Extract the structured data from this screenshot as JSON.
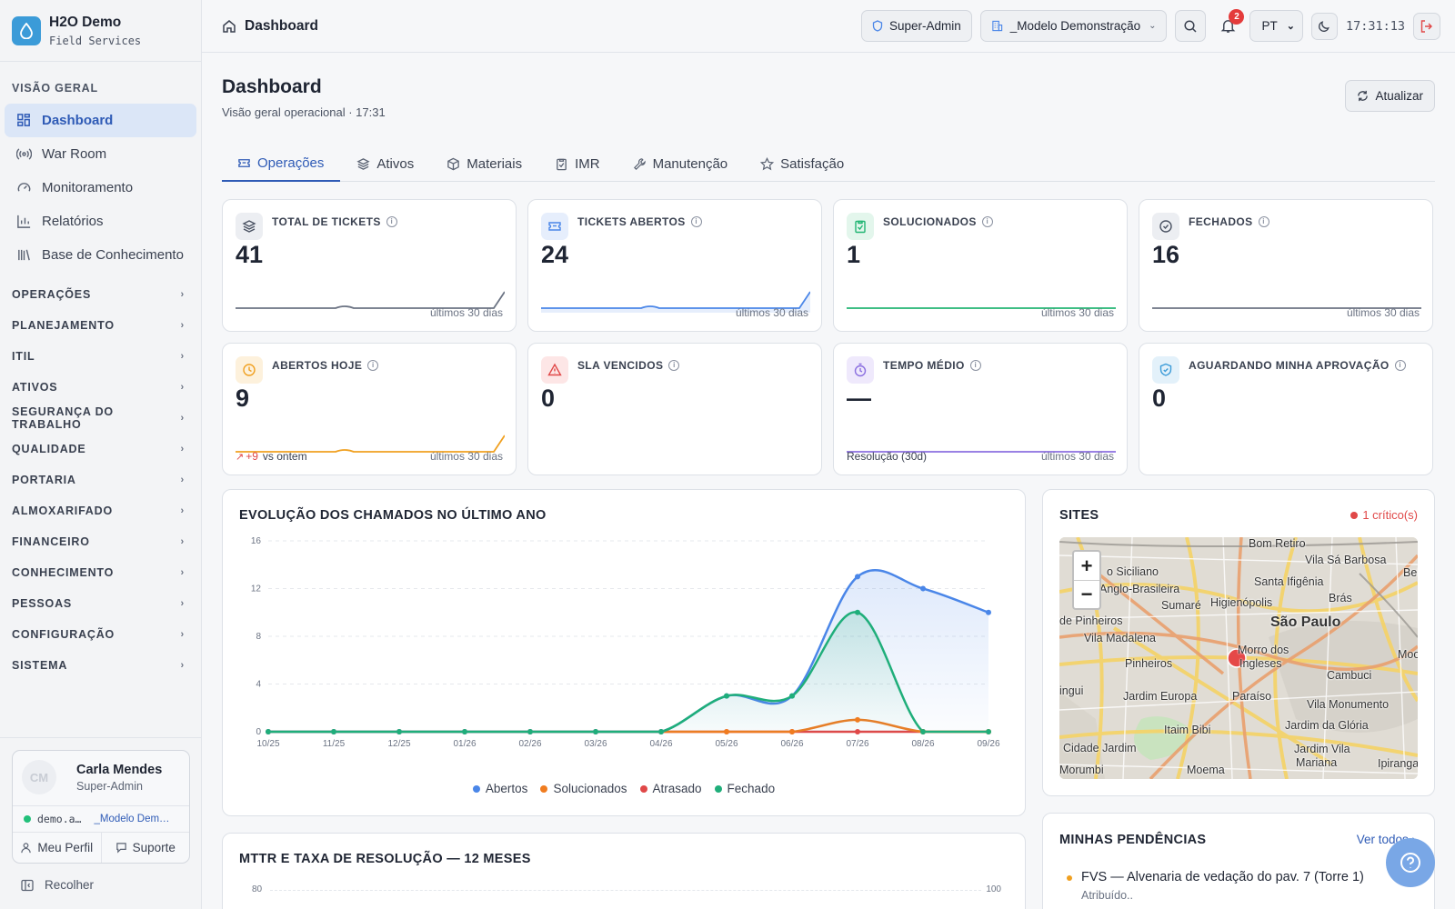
{
  "brand": {
    "name": "H2O Demo",
    "subtitle": "Field Services"
  },
  "sidebar": {
    "section": "VISÃO GERAL",
    "items": [
      {
        "label": "Dashboard",
        "icon": "grid-icon",
        "active": true
      },
      {
        "label": "War Room",
        "icon": "broadcast-icon"
      },
      {
        "label": "Monitoramento",
        "icon": "gauge-icon"
      },
      {
        "label": "Relatórios",
        "icon": "bar-chart-icon"
      },
      {
        "label": "Base de Conhecimento",
        "icon": "library-icon"
      }
    ],
    "groups": [
      "OPERAÇÕES",
      "PLANEJAMENTO",
      "ITIL",
      "ATIVOS",
      "SEGURANÇA DO TRABALHO",
      "QUALIDADE",
      "PORTARIA",
      "ALMOXARIFADO",
      "FINANCEIRO",
      "CONHECIMENTO",
      "PESSOAS",
      "CONFIGURAÇÃO",
      "SISTEMA"
    ],
    "user": {
      "initials": "CM",
      "name": "Carla Mendes",
      "role": "Super-Admin",
      "login": "demo.a…",
      "tenant": "_Modelo Dem…",
      "profile": "Meu Perfil",
      "support": "Suporte"
    },
    "collapse": "Recolher"
  },
  "topbar": {
    "breadcrumb": "Dashboard",
    "role": "Super-Admin",
    "tenant": "_Modelo Demonstração",
    "notifications": "2",
    "language": "PT",
    "clock": "17:31:13"
  },
  "page": {
    "title": "Dashboard",
    "subtitle": "Visão geral operacional · 17:31",
    "refresh": "Atualizar",
    "tabs": [
      {
        "label": "Operações",
        "icon": "ticket-icon",
        "active": true
      },
      {
        "label": "Ativos",
        "icon": "layers-icon"
      },
      {
        "label": "Materiais",
        "icon": "box-icon"
      },
      {
        "label": "IMR",
        "icon": "clipboard-icon"
      },
      {
        "label": "Manutenção",
        "icon": "wrench-icon"
      },
      {
        "label": "Satisfação",
        "icon": "star-icon"
      }
    ]
  },
  "kpis": [
    {
      "label": "TOTAL DE TICKETS",
      "value": "41",
      "foot": "últimos 30 dias",
      "color": "#6b7383",
      "bg": "#eceef2",
      "icon": "layers-icon"
    },
    {
      "label": "TICKETS ABERTOS",
      "value": "24",
      "foot": "últimos 30 dias",
      "color": "#4a86e8",
      "bg": "#e6eefc",
      "icon": "ticket-icon"
    },
    {
      "label": "SOLUCIONADOS",
      "value": "1",
      "foot": "últimos 30 dias",
      "color": "#22b573",
      "bg": "#e3f6ec",
      "icon": "clipboard-check-icon"
    },
    {
      "label": "FECHADOS",
      "value": "16",
      "foot": "últimos 30 dias",
      "color": "#6b7383",
      "bg": "#eceef2",
      "icon": "check-circle-icon"
    },
    {
      "label": "ABERTOS HOJE",
      "value": "9",
      "foot": "últimos 30 dias",
      "delta": "+9",
      "delta_text": "vs ontem",
      "color": "#f0a020",
      "bg": "#fdf1dc",
      "icon": "clock-icon"
    },
    {
      "label": "SLA VENCIDOS",
      "value": "0",
      "color": "#e04848",
      "bg": "#fde6e6",
      "icon": "alert-triangle-icon"
    },
    {
      "label": "TEMPO MÉDIO",
      "value": "—",
      "foot": "últimos 30 dias",
      "foot_left": "Resolução (30d)",
      "color": "#8b6fe0",
      "bg": "#efe9fc",
      "icon": "timer-icon"
    },
    {
      "label": "AGUARDANDO MINHA APROVAÇÃO",
      "value": "0",
      "color": "#3b9bd8",
      "bg": "#e3f1fa",
      "icon": "shield-check-icon"
    }
  ],
  "evolution": {
    "title": "EVOLUÇÃO DOS CHAMADOS NO ÚLTIMO ANO",
    "chart_data": {
      "type": "line",
      "x": [
        "10/25",
        "11/25",
        "12/25",
        "01/26",
        "02/26",
        "03/26",
        "04/26",
        "05/26",
        "06/26",
        "07/26",
        "08/26",
        "09/26"
      ],
      "ylim": [
        0,
        16
      ],
      "yticks": [
        0,
        4,
        8,
        12,
        16
      ],
      "series": [
        {
          "name": "Abertos",
          "color": "#4a86e8",
          "values": [
            0,
            0,
            0,
            0,
            0,
            0,
            0,
            3,
            3,
            13,
            12,
            10
          ]
        },
        {
          "name": "Solucionados",
          "color": "#f07c20",
          "values": [
            0,
            0,
            0,
            0,
            0,
            0,
            0,
            0,
            0,
            1,
            0,
            0
          ]
        },
        {
          "name": "Atrasado",
          "color": "#e04848",
          "values": [
            0,
            0,
            0,
            0,
            0,
            0,
            0,
            0,
            0,
            0,
            0,
            0
          ]
        },
        {
          "name": "Fechado",
          "color": "#1fae7a",
          "values": [
            0,
            0,
            0,
            0,
            0,
            0,
            0,
            3,
            3,
            10,
            0,
            0
          ]
        }
      ]
    }
  },
  "sites": {
    "title": "SITES",
    "critical": "1 crítico(s)",
    "map_labels": [
      "Bom Retiro",
      "Vila Sá Barbosa",
      "o Siciliano",
      "Santa Ifigênia",
      "Bel",
      "Anglo-Brasileira",
      "Sumaré",
      "Higienópolis",
      "Brás",
      "de Pinheiros",
      "São Paulo",
      "Vila Madalena",
      "Morro dos",
      "Ingleses",
      "Moo",
      "Pinheiros",
      "Cambuci",
      "Jardim Europa",
      "Paraíso",
      "Vila Monumento",
      "ingui",
      "Itaim Bibi",
      "Jardim da Glória",
      "Cidade Jardim",
      "Jardim Vila",
      "Mariana",
      "Morumbi",
      "Moema",
      "Ipiranga"
    ]
  },
  "mttr": {
    "title": "MTTR E TAXA DE RESOLUÇÃO — 12 MESES",
    "left_tick": "80",
    "right_tick": "100"
  },
  "pending": {
    "title": "MINHAS PENDÊNCIAS",
    "see_all": "Ver todos",
    "items": [
      {
        "title": "FVS — Alvenaria de vedação do pav. 7 (Torre 1)",
        "status": "Atribuído.."
      }
    ]
  }
}
